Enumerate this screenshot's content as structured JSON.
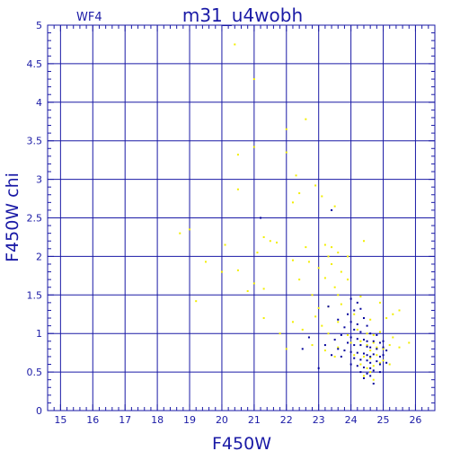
{
  "chart_data": {
    "type": "scatter",
    "title": "m31_u4wobh",
    "panel_label": "WF4",
    "xlabel": "F450W",
    "ylabel": "F450W chi",
    "xlim": [
      14.6,
      26.6
    ],
    "ylim": [
      0,
      5
    ],
    "x_ticks": [
      "15",
      "16",
      "17",
      "18",
      "19",
      "20",
      "21",
      "22",
      "23",
      "24",
      "25",
      "26"
    ],
    "y_ticks": [
      "0",
      "0.5",
      "1",
      "1.5",
      "2",
      "2.5",
      "3",
      "3.5",
      "4",
      "4.5",
      "5"
    ],
    "grid": true,
    "colors": {
      "axis": "#1a1aa6",
      "grid": "#1a1aa6",
      "yellow_points": "#f2ee00",
      "blue_points": "#00009a"
    },
    "series": [
      {
        "color": "yellow",
        "points": [
          [
            20.4,
            4.75
          ],
          [
            21.0,
            4.3
          ],
          [
            22.6,
            3.78
          ],
          [
            22.0,
            3.65
          ],
          [
            21.0,
            3.42
          ],
          [
            20.5,
            3.32
          ],
          [
            22.0,
            3.35
          ],
          [
            22.3,
            3.05
          ],
          [
            22.9,
            2.92
          ],
          [
            23.1,
            2.78
          ],
          [
            20.5,
            2.87
          ],
          [
            22.4,
            2.82
          ],
          [
            23.5,
            2.65
          ],
          [
            22.2,
            2.7
          ],
          [
            18.7,
            2.3
          ],
          [
            19.0,
            2.35
          ],
          [
            21.3,
            2.25
          ],
          [
            21.5,
            2.2
          ],
          [
            21.7,
            2.18
          ],
          [
            20.1,
            2.15
          ],
          [
            22.6,
            2.12
          ],
          [
            23.2,
            2.15
          ],
          [
            23.4,
            2.12
          ],
          [
            24.4,
            2.2
          ],
          [
            21.1,
            2.05
          ],
          [
            23.3,
            2.0
          ],
          [
            23.6,
            2.05
          ],
          [
            23.9,
            2.0
          ],
          [
            22.2,
            1.95
          ],
          [
            22.7,
            1.93
          ],
          [
            19.5,
            1.93
          ],
          [
            20.0,
            1.8
          ],
          [
            20.5,
            1.82
          ],
          [
            23.0,
            1.85
          ],
          [
            23.4,
            1.9
          ],
          [
            23.7,
            1.8
          ],
          [
            22.4,
            1.7
          ],
          [
            21.0,
            1.65
          ],
          [
            23.2,
            1.72
          ],
          [
            23.5,
            1.6
          ],
          [
            23.9,
            1.7
          ],
          [
            19.2,
            1.42
          ],
          [
            20.8,
            1.55
          ],
          [
            21.3,
            1.58
          ],
          [
            22.8,
            1.5
          ],
          [
            23.6,
            1.5
          ],
          [
            24.3,
            1.48
          ],
          [
            24.9,
            1.4
          ],
          [
            23.0,
            1.33
          ],
          [
            23.3,
            1.35
          ],
          [
            23.7,
            1.38
          ],
          [
            25.5,
            1.3
          ],
          [
            21.3,
            1.2
          ],
          [
            22.9,
            1.22
          ],
          [
            24.1,
            1.25
          ],
          [
            25.3,
            1.25
          ],
          [
            22.2,
            1.15
          ],
          [
            23.1,
            1.1
          ],
          [
            23.6,
            1.15
          ],
          [
            24.6,
            1.18
          ],
          [
            25.1,
            1.2
          ],
          [
            21.8,
            1.0
          ],
          [
            22.5,
            1.05
          ],
          [
            23.3,
            1.0
          ],
          [
            23.9,
            0.98
          ],
          [
            24.2,
            1.05
          ],
          [
            24.5,
            1.0
          ],
          [
            24.7,
            0.98
          ],
          [
            24.9,
            1.02
          ],
          [
            25.3,
            0.95
          ],
          [
            22.0,
            0.8
          ],
          [
            22.8,
            0.85
          ],
          [
            23.2,
            0.78
          ],
          [
            23.6,
            0.82
          ],
          [
            24.0,
            0.88
          ],
          [
            24.3,
            0.9
          ],
          [
            24.5,
            0.85
          ],
          [
            24.6,
            0.78
          ],
          [
            24.7,
            0.88
          ],
          [
            24.8,
            0.82
          ],
          [
            25.0,
            0.8
          ],
          [
            25.2,
            0.85
          ],
          [
            25.5,
            0.82
          ],
          [
            25.8,
            0.88
          ],
          [
            23.5,
            0.7
          ],
          [
            24.1,
            0.72
          ],
          [
            24.4,
            0.7
          ],
          [
            24.6,
            0.68
          ],
          [
            24.8,
            0.72
          ],
          [
            25.0,
            0.65
          ],
          [
            24.3,
            0.6
          ],
          [
            24.7,
            0.58
          ],
          [
            24.9,
            0.62
          ],
          [
            24.5,
            0.55
          ],
          [
            25.2,
            0.6
          ],
          [
            24.6,
            0.5
          ],
          [
            24.4,
            0.45
          ],
          [
            24.7,
            0.4
          ]
        ]
      },
      {
        "color": "blue",
        "points": [
          [
            21.2,
            2.5
          ],
          [
            23.4,
            2.6
          ],
          [
            24.0,
            1.45
          ],
          [
            24.2,
            1.4
          ],
          [
            23.3,
            1.35
          ],
          [
            24.1,
            1.3
          ],
          [
            24.3,
            1.32
          ],
          [
            23.9,
            1.25
          ],
          [
            24.4,
            1.2
          ],
          [
            23.6,
            1.18
          ],
          [
            24.0,
            1.15
          ],
          [
            24.2,
            1.12
          ],
          [
            24.5,
            1.1
          ],
          [
            23.8,
            1.08
          ],
          [
            24.1,
            1.05
          ],
          [
            24.3,
            1.02
          ],
          [
            24.6,
            1.0
          ],
          [
            24.8,
            0.98
          ],
          [
            23.7,
            0.98
          ],
          [
            24.0,
            0.95
          ],
          [
            24.2,
            0.93
          ],
          [
            24.4,
            0.92
          ],
          [
            24.5,
            0.9
          ],
          [
            24.7,
            0.9
          ],
          [
            24.9,
            0.88
          ],
          [
            25.0,
            0.9
          ],
          [
            23.5,
            0.92
          ],
          [
            23.9,
            0.88
          ],
          [
            24.1,
            0.85
          ],
          [
            24.3,
            0.85
          ],
          [
            24.5,
            0.83
          ],
          [
            24.6,
            0.82
          ],
          [
            24.8,
            0.8
          ],
          [
            25.0,
            0.82
          ],
          [
            25.1,
            0.78
          ],
          [
            23.6,
            0.8
          ],
          [
            23.8,
            0.78
          ],
          [
            24.0,
            0.76
          ],
          [
            24.2,
            0.75
          ],
          [
            24.4,
            0.74
          ],
          [
            24.5,
            0.72
          ],
          [
            24.6,
            0.7
          ],
          [
            24.7,
            0.73
          ],
          [
            24.9,
            0.7
          ],
          [
            25.0,
            0.72
          ],
          [
            23.4,
            0.72
          ],
          [
            23.7,
            0.7
          ],
          [
            24.1,
            0.68
          ],
          [
            24.3,
            0.66
          ],
          [
            24.5,
            0.65
          ],
          [
            24.6,
            0.62
          ],
          [
            24.8,
            0.64
          ],
          [
            24.9,
            0.6
          ],
          [
            25.1,
            0.62
          ],
          [
            24.0,
            0.6
          ],
          [
            24.2,
            0.58
          ],
          [
            24.4,
            0.56
          ],
          [
            24.6,
            0.55
          ],
          [
            24.7,
            0.52
          ],
          [
            24.9,
            0.5
          ],
          [
            24.3,
            0.5
          ],
          [
            24.5,
            0.48
          ],
          [
            24.6,
            0.45
          ],
          [
            24.4,
            0.42
          ],
          [
            24.7,
            0.35
          ],
          [
            23.0,
            0.55
          ],
          [
            22.7,
            0.95
          ],
          [
            22.5,
            0.8
          ],
          [
            23.2,
            0.85
          ]
        ]
      }
    ]
  }
}
